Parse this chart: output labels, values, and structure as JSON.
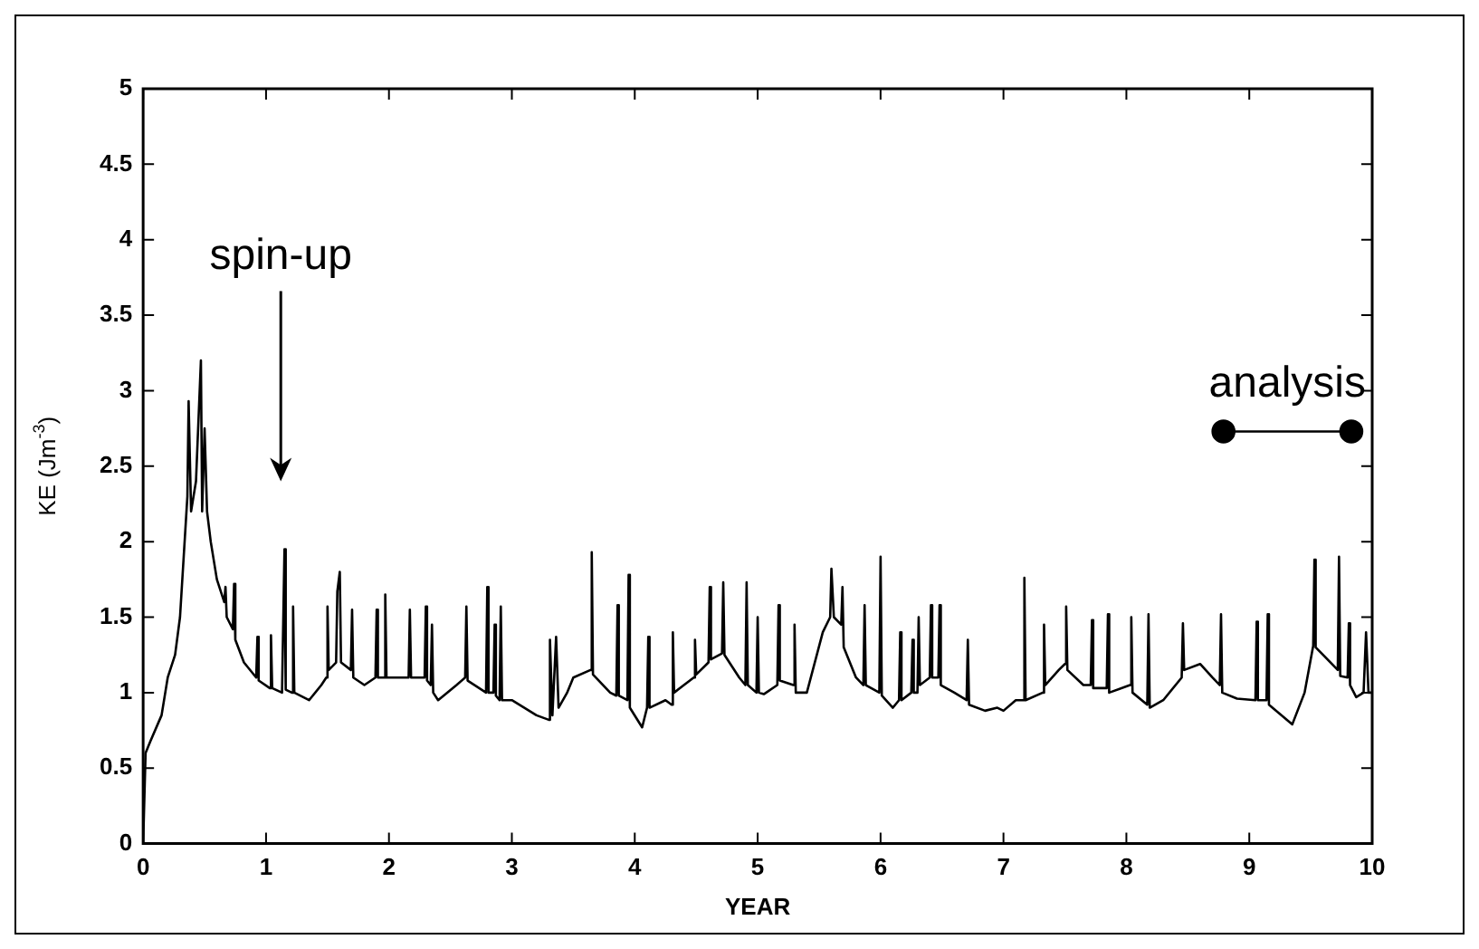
{
  "chart_data": {
    "type": "line",
    "xlabel": "YEAR",
    "ylabel": "KE (Jm$^{-3}$)",
    "xlim": [
      0,
      10
    ],
    "xticks": [
      0,
      1,
      2,
      3,
      4,
      5,
      6,
      7,
      8,
      9,
      10
    ],
    "ylim": [
      0,
      5
    ],
    "yticks": [
      0,
      0.5,
      1,
      1.5,
      2,
      2.5,
      3,
      3.5,
      4,
      4.5,
      5
    ],
    "grid": false,
    "legend": false,
    "marker": "none",
    "line_style": "solid",
    "series": [
      {
        "color": "#000000",
        "x": [
          0,
          0.02,
          0.06,
          0.15,
          0.2,
          0.26,
          0.3,
          0.33,
          0.36,
          0.37,
          0.39,
          0.43,
          0.47,
          0.48,
          0.5,
          0.52,
          0.55,
          0.6,
          0.66,
          0.67,
          0.68,
          0.73,
          0.74,
          0.75,
          0.82,
          0.92,
          0.93,
          0.94,
          1.03,
          1.04,
          1.05,
          1.13,
          1.15,
          1.16,
          1.21,
          1.22,
          1.23,
          1.35,
          1.45,
          1.49,
          1.5,
          1.51,
          1.57,
          1.58,
          1.6,
          1.61,
          1.69,
          1.7,
          1.71,
          1.8,
          1.89,
          1.9,
          1.91,
          1.96,
          1.97,
          1.98,
          2.1,
          2.16,
          2.17,
          2.18,
          2.29,
          2.3,
          2.31,
          2.34,
          2.35,
          2.36,
          2.4,
          2.55,
          2.62,
          2.63,
          2.64,
          2.79,
          2.8,
          2.81,
          2.85,
          2.86,
          2.87,
          2.9,
          2.91,
          2.92,
          3.0,
          3.2,
          3.3,
          3.31,
          3.33,
          3.36,
          3.38,
          3.45,
          3.5,
          3.64,
          3.65,
          3.66,
          3.8,
          3.85,
          3.86,
          3.87,
          3.94,
          3.95,
          3.96,
          4.06,
          4.1,
          4.11,
          4.12,
          4.25,
          4.3,
          4.31,
          4.32,
          4.4,
          4.48,
          4.49,
          4.5,
          4.6,
          4.61,
          4.62,
          4.71,
          4.72,
          4.73,
          4.85,
          4.9,
          4.91,
          4.92,
          4.99,
          5.0,
          5.01,
          5.05,
          5.16,
          5.17,
          5.18,
          5.29,
          5.3,
          5.31,
          5.4,
          5.53,
          5.59,
          5.6,
          5.62,
          5.68,
          5.69,
          5.7,
          5.8,
          5.86,
          5.87,
          5.88,
          5.99,
          6.0,
          6.01,
          6.1,
          6.15,
          6.16,
          6.17,
          6.25,
          6.26,
          6.27,
          6.3,
          6.31,
          6.32,
          6.4,
          6.41,
          6.42,
          6.47,
          6.48,
          6.49,
          6.6,
          6.7,
          6.71,
          6.72,
          6.85,
          6.95,
          7.0,
          7.1,
          7.16,
          7.17,
          7.18,
          7.32,
          7.33,
          7.34,
          7.45,
          7.5,
          7.51,
          7.52,
          7.65,
          7.71,
          7.72,
          7.73,
          7.84,
          7.85,
          7.86,
          8.03,
          8.04,
          8.05,
          8.17,
          8.18,
          8.19,
          8.3,
          8.45,
          8.46,
          8.47,
          8.6,
          8.7,
          8.76,
          8.77,
          8.78,
          8.9,
          9.05,
          9.06,
          9.07,
          9.14,
          9.15,
          9.16,
          9.35,
          9.45,
          9.52,
          9.53,
          9.54,
          9.6,
          9.72,
          9.73,
          9.74,
          9.8,
          9.81,
          9.82,
          9.87,
          9.93,
          9.95,
          9.97,
          10
        ],
        "values": [
          0,
          0.6,
          0.68,
          0.85,
          1.1,
          1.25,
          1.5,
          1.9,
          2.3,
          2.93,
          2.2,
          2.4,
          3.2,
          2.2,
          2.75,
          2.2,
          2.0,
          1.75,
          1.6,
          1.7,
          1.5,
          1.42,
          1.72,
          1.35,
          1.2,
          1.1,
          1.37,
          1.08,
          1.03,
          1.38,
          1.03,
          1.0,
          1.95,
          1.02,
          1.0,
          1.57,
          1.0,
          0.95,
          1.05,
          1.1,
          1.57,
          1.15,
          1.2,
          1.67,
          1.8,
          1.2,
          1.15,
          1.55,
          1.1,
          1.05,
          1.1,
          1.55,
          1.1,
          1.1,
          1.65,
          1.1,
          1.1,
          1.1,
          1.55,
          1.1,
          1.1,
          1.57,
          1.08,
          1.05,
          1.45,
          1.0,
          0.95,
          1.05,
          1.1,
          1.57,
          1.08,
          1.0,
          1.7,
          1.0,
          1.0,
          1.45,
          0.98,
          0.95,
          1.57,
          0.95,
          0.95,
          0.85,
          0.82,
          1.35,
          0.85,
          1.37,
          0.9,
          1.0,
          1.1,
          1.15,
          1.93,
          1.12,
          1.0,
          0.98,
          1.58,
          0.98,
          0.95,
          1.78,
          0.9,
          0.77,
          0.9,
          1.37,
          0.9,
          0.95,
          0.92,
          1.4,
          1.0,
          1.05,
          1.1,
          1.35,
          1.12,
          1.2,
          1.7,
          1.22,
          1.26,
          1.73,
          1.25,
          1.1,
          1.05,
          1.73,
          1.05,
          1.0,
          1.5,
          1.0,
          0.99,
          1.05,
          1.58,
          1.08,
          1.05,
          1.45,
          1.0,
          1.0,
          1.4,
          1.5,
          1.82,
          1.5,
          1.45,
          1.7,
          1.3,
          1.1,
          1.05,
          1.58,
          1.05,
          1.0,
          1.9,
          0.98,
          0.9,
          0.95,
          1.4,
          0.95,
          1.0,
          1.35,
          1.0,
          1.0,
          1.5,
          1.05,
          1.1,
          1.58,
          1.1,
          1.1,
          1.58,
          1.05,
          1.0,
          0.95,
          1.35,
          0.92,
          0.88,
          0.9,
          0.88,
          0.95,
          0.95,
          1.76,
          0.95,
          1.0,
          1.45,
          1.05,
          1.15,
          1.19,
          1.57,
          1.15,
          1.05,
          1.05,
          1.48,
          1.03,
          1.03,
          1.52,
          1.0,
          1.05,
          1.5,
          1.0,
          0.92,
          1.52,
          0.9,
          0.95,
          1.1,
          1.46,
          1.15,
          1.19,
          1.1,
          1.05,
          1.52,
          1.0,
          0.96,
          0.95,
          1.47,
          0.95,
          0.95,
          1.52,
          0.92,
          0.79,
          1.0,
          1.31,
          1.88,
          1.3,
          1.25,
          1.15,
          1.9,
          1.11,
          1.1,
          1.46,
          1.05,
          0.97,
          1.0,
          1.4,
          1.0,
          1.0
        ]
      },
      {
        "type": "line",
        "color": "#000000",
        "marker": "circle",
        "x": [
          8.79,
          9.83
        ],
        "values": [
          2.73,
          2.73
        ]
      }
    ],
    "annotations": [
      "spin-up",
      "analysis"
    ]
  }
}
